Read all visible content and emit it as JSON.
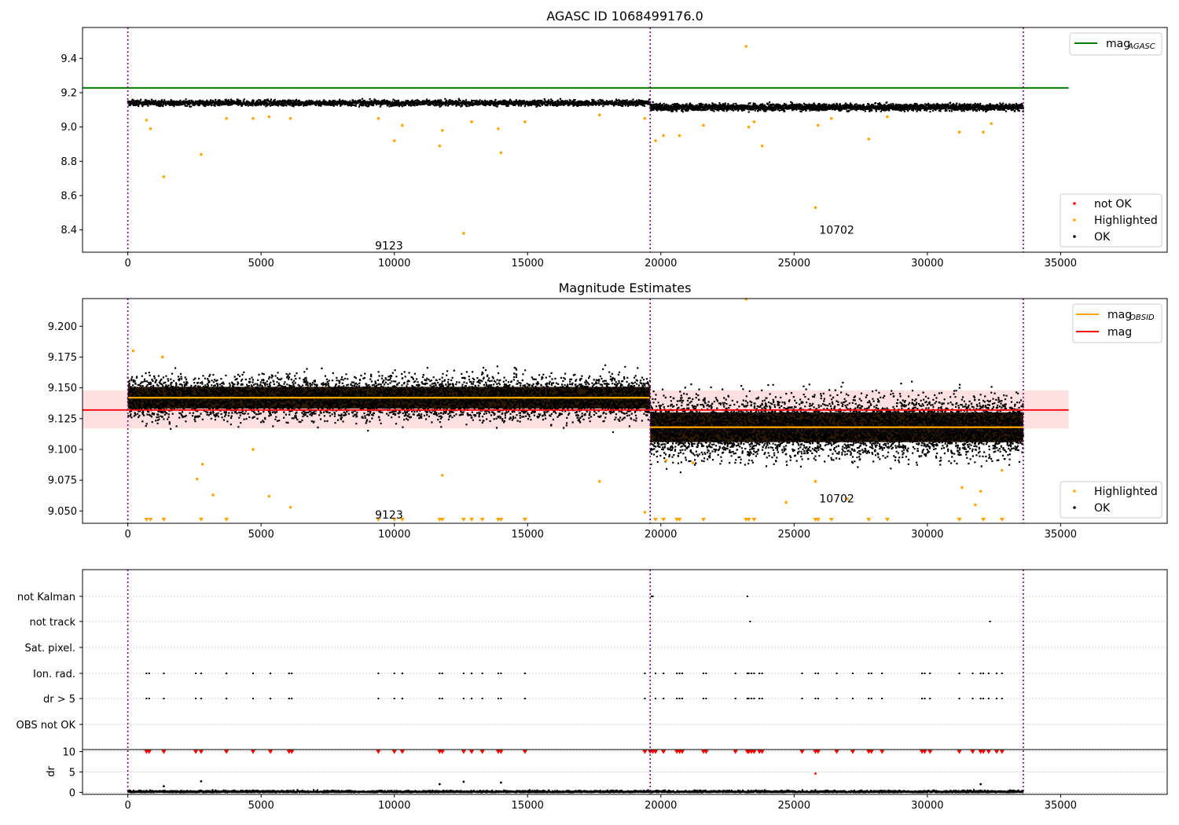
{
  "chart_data": [
    {
      "type": "scatter",
      "title": "AGASC ID 1068499176.0",
      "xlim": [
        -1700,
        39000
      ],
      "ylim": [
        8.27,
        9.58
      ],
      "xticks": [
        "0",
        "5000",
        "10000",
        "15000",
        "20000",
        "25000",
        "30000",
        "35000"
      ],
      "yticks": [
        "8.4",
        "8.6",
        "8.8",
        "9.0",
        "9.2",
        "9.4"
      ],
      "reference_line": {
        "name": "mag_AGASC",
        "y": 9.228,
        "x": [
          -1700,
          35300
        ],
        "color": "#008000"
      },
      "obs_boundaries": [
        0,
        19600,
        33600
      ],
      "obs_labels": [
        {
          "text": "9123",
          "x": 9800,
          "y": 8.31
        },
        {
          "text": "10702",
          "x": 26600,
          "y": 8.4
        }
      ],
      "ok_bands": [
        {
          "x": [
            0,
            19600
          ],
          "center": 9.14,
          "halfwidth": 0.015
        },
        {
          "x": [
            19600,
            33600
          ],
          "center": 9.115,
          "halfwidth": 0.018
        }
      ],
      "highlighted": [
        {
          "x": 700,
          "y": 9.04
        },
        {
          "x": 850,
          "y": 8.99
        },
        {
          "x": 1350,
          "y": 8.71
        },
        {
          "x": 2750,
          "y": 8.84
        },
        {
          "x": 3700,
          "y": 9.05
        },
        {
          "x": 4700,
          "y": 9.05
        },
        {
          "x": 5300,
          "y": 9.06
        },
        {
          "x": 6100,
          "y": 9.05
        },
        {
          "x": 9400,
          "y": 9.05
        },
        {
          "x": 10000,
          "y": 8.92
        },
        {
          "x": 10300,
          "y": 9.01
        },
        {
          "x": 11700,
          "y": 8.89
        },
        {
          "x": 11800,
          "y": 8.98
        },
        {
          "x": 12600,
          "y": 8.38
        },
        {
          "x": 12900,
          "y": 9.03
        },
        {
          "x": 13900,
          "y": 8.99
        },
        {
          "x": 14000,
          "y": 8.85
        },
        {
          "x": 14900,
          "y": 9.03
        },
        {
          "x": 17700,
          "y": 9.07
        },
        {
          "x": 19400,
          "y": 9.05
        },
        {
          "x": 19800,
          "y": 8.92
        },
        {
          "x": 20100,
          "y": 8.95
        },
        {
          "x": 20700,
          "y": 8.95
        },
        {
          "x": 21600,
          "y": 9.01
        },
        {
          "x": 23200,
          "y": 9.47
        },
        {
          "x": 23300,
          "y": 9.0
        },
        {
          "x": 23500,
          "y": 9.03
        },
        {
          "x": 23800,
          "y": 8.89
        },
        {
          "x": 25800,
          "y": 8.53
        },
        {
          "x": 25900,
          "y": 9.01
        },
        {
          "x": 26400,
          "y": 9.05
        },
        {
          "x": 27800,
          "y": 8.93
        },
        {
          "x": 28500,
          "y": 9.06
        },
        {
          "x": 31200,
          "y": 8.97
        },
        {
          "x": 32100,
          "y": 8.97
        },
        {
          "x": 32400,
          "y": 9.02
        }
      ],
      "legend": {
        "lines": [
          {
            "label": "mag",
            "sub": "AGASC",
            "color": "#008000"
          }
        ],
        "points": [
          {
            "label": "not OK",
            "color": "#ff0000"
          },
          {
            "label": "Highlighted",
            "color": "#ffa500"
          },
          {
            "label": "OK",
            "color": "#000000"
          }
        ]
      }
    },
    {
      "type": "scatter",
      "title": "Magnitude Estimates",
      "xlim": [
        -1700,
        39000
      ],
      "ylim": [
        9.04,
        9.2225
      ],
      "xticks": [
        "0",
        "5000",
        "10000",
        "15000",
        "20000",
        "25000",
        "30000",
        "35000"
      ],
      "yticks": [
        "9.050",
        "9.075",
        "9.100",
        "9.125",
        "9.150",
        "9.175",
        "9.200"
      ],
      "obs_boundaries": [
        0,
        19600,
        33600
      ],
      "obs_labels": [
        {
          "text": "9123",
          "x": 9800,
          "y": 9.047
        },
        {
          "text": "10702",
          "x": 26600,
          "y": 9.06
        }
      ],
      "mag_line": {
        "name": "mag",
        "y": 9.132,
        "band": [
          9.117,
          9.148
        ],
        "x": [
          -1700,
          35300
        ],
        "color": "#ff0000"
      },
      "obsid_mags": [
        {
          "x": [
            0,
            19600
          ],
          "y": 9.142
        },
        {
          "x": [
            19600,
            33600
          ],
          "y": 9.118
        }
      ],
      "ok_bands": [
        {
          "x": [
            0,
            19600
          ],
          "center": 9.142,
          "halfwidth": 0.016
        },
        {
          "x": [
            19600,
            33600
          ],
          "center": 9.118,
          "halfwidth": 0.022
        }
      ],
      "highlighted": [
        {
          "x": 200,
          "y": 9.18
        },
        {
          "x": 1300,
          "y": 9.175
        },
        {
          "x": 2600,
          "y": 9.076
        },
        {
          "x": 2800,
          "y": 9.088
        },
        {
          "x": 3200,
          "y": 9.063
        },
        {
          "x": 4700,
          "y": 9.1
        },
        {
          "x": 5300,
          "y": 9.062
        },
        {
          "x": 6100,
          "y": 9.053
        },
        {
          "x": 11800,
          "y": 9.079
        },
        {
          "x": 17700,
          "y": 9.074
        },
        {
          "x": 19400,
          "y": 9.049
        },
        {
          "x": 20200,
          "y": 9.091
        },
        {
          "x": 21200,
          "y": 9.089
        },
        {
          "x": 23200,
          "y": 9.222
        },
        {
          "x": 24700,
          "y": 9.057
        },
        {
          "x": 25800,
          "y": 9.074
        },
        {
          "x": 27000,
          "y": 9.06
        },
        {
          "x": 31300,
          "y": 9.069
        },
        {
          "x": 31800,
          "y": 9.055
        },
        {
          "x": 32000,
          "y": 9.066
        },
        {
          "x": 32800,
          "y": 9.083
        }
      ],
      "clipped_low_x": [
        700,
        850,
        1350,
        2750,
        3700,
        9400,
        10000,
        10300,
        11700,
        11800,
        12600,
        12900,
        13300,
        13900,
        14000,
        14900,
        19800,
        20100,
        20600,
        20700,
        21600,
        23200,
        23300,
        23500,
        25800,
        25900,
        26400,
        27800,
        28500,
        31200,
        32100,
        32800
      ],
      "legend_top": [
        {
          "label": "mag",
          "sub": "OBSID",
          "color": "#ffa500"
        },
        {
          "label": "mag",
          "sub": "",
          "color": "#ff0000"
        }
      ],
      "legend_bottom": [
        {
          "label": "Highlighted",
          "color": "#ffa500"
        },
        {
          "label": "OK",
          "color": "#000000"
        }
      ]
    },
    {
      "type": "scatter",
      "title": "",
      "xlim": [
        -1700,
        39000
      ],
      "xticks": [
        "0",
        "5000",
        "10000",
        "15000",
        "20000",
        "25000",
        "30000",
        "35000"
      ],
      "categories": [
        "not Kalman",
        "not track",
        "Sat. pixel.",
        "Ion. rad.",
        "dr > 5",
        "OBS not OK"
      ],
      "obs_boundaries": [
        0,
        19600,
        33600
      ],
      "flags": {
        "not Kalman": [
          19650,
          19700,
          23250
        ],
        "not track": [
          23350,
          32350
        ],
        "Sat. pixel.": [],
        "Ion. rad.": [
          700,
          800,
          1350,
          2550,
          2750,
          3700,
          4700,
          5350,
          6050,
          6150,
          9400,
          10000,
          10300,
          11700,
          11800,
          12600,
          12900,
          13300,
          13900,
          14000,
          14900,
          19400,
          19800,
          20100,
          20600,
          20700,
          20800,
          21600,
          21700,
          22800,
          23250,
          23300,
          23400,
          23500,
          23700,
          23800,
          25300,
          25800,
          25900,
          26600,
          27200,
          27800,
          27900,
          28300,
          29800,
          29900,
          30100,
          31200,
          31700,
          32000,
          32100,
          32300,
          32600,
          32800
        ],
        "dr > 5": [
          700,
          800,
          1350,
          2550,
          2750,
          3700,
          4700,
          5350,
          6050,
          6150,
          9400,
          10000,
          10300,
          11700,
          11800,
          12600,
          12900,
          13300,
          13900,
          14000,
          14900,
          19400,
          19800,
          20100,
          20600,
          20700,
          20800,
          21600,
          21700,
          22800,
          23250,
          23300,
          23400,
          23500,
          23700,
          23800,
          25300,
          25800,
          25900,
          26600,
          27200,
          27800,
          27900,
          28300,
          29800,
          29900,
          30100,
          31200,
          31700,
          32000,
          32100,
          32300,
          32600,
          32800
        ],
        "OBS not OK": []
      },
      "dr_panel": {
        "ylabel": "dr",
        "ylim": [
          -0.5,
          10.5
        ],
        "yticks": [
          "0",
          "5",
          "10"
        ],
        "clipped_x": [
          700,
          800,
          1350,
          2550,
          2750,
          3700,
          4700,
          5350,
          6050,
          6150,
          9400,
          10000,
          10300,
          11700,
          11800,
          12600,
          12900,
          13300,
          13900,
          14000,
          14900,
          19400,
          19600,
          19700,
          19800,
          20100,
          20600,
          20700,
          20800,
          21600,
          21700,
          22800,
          23250,
          23300,
          23400,
          23500,
          23700,
          23800,
          25300,
          25800,
          25900,
          26600,
          27200,
          27800,
          27900,
          28300,
          29800,
          29900,
          30100,
          31200,
          31700,
          32000,
          32100,
          32300,
          32600,
          32800
        ],
        "outliers": [
          {
            "x": 1350,
            "y": 1.5
          },
          {
            "x": 2750,
            "y": 2.7
          },
          {
            "x": 11700,
            "y": 2.0
          },
          {
            "x": 12600,
            "y": 2.6
          },
          {
            "x": 14000,
            "y": 2.4
          },
          {
            "x": 25800,
            "y": 4.6
          },
          {
            "x": 32000,
            "y": 2.0
          }
        ]
      }
    }
  ]
}
